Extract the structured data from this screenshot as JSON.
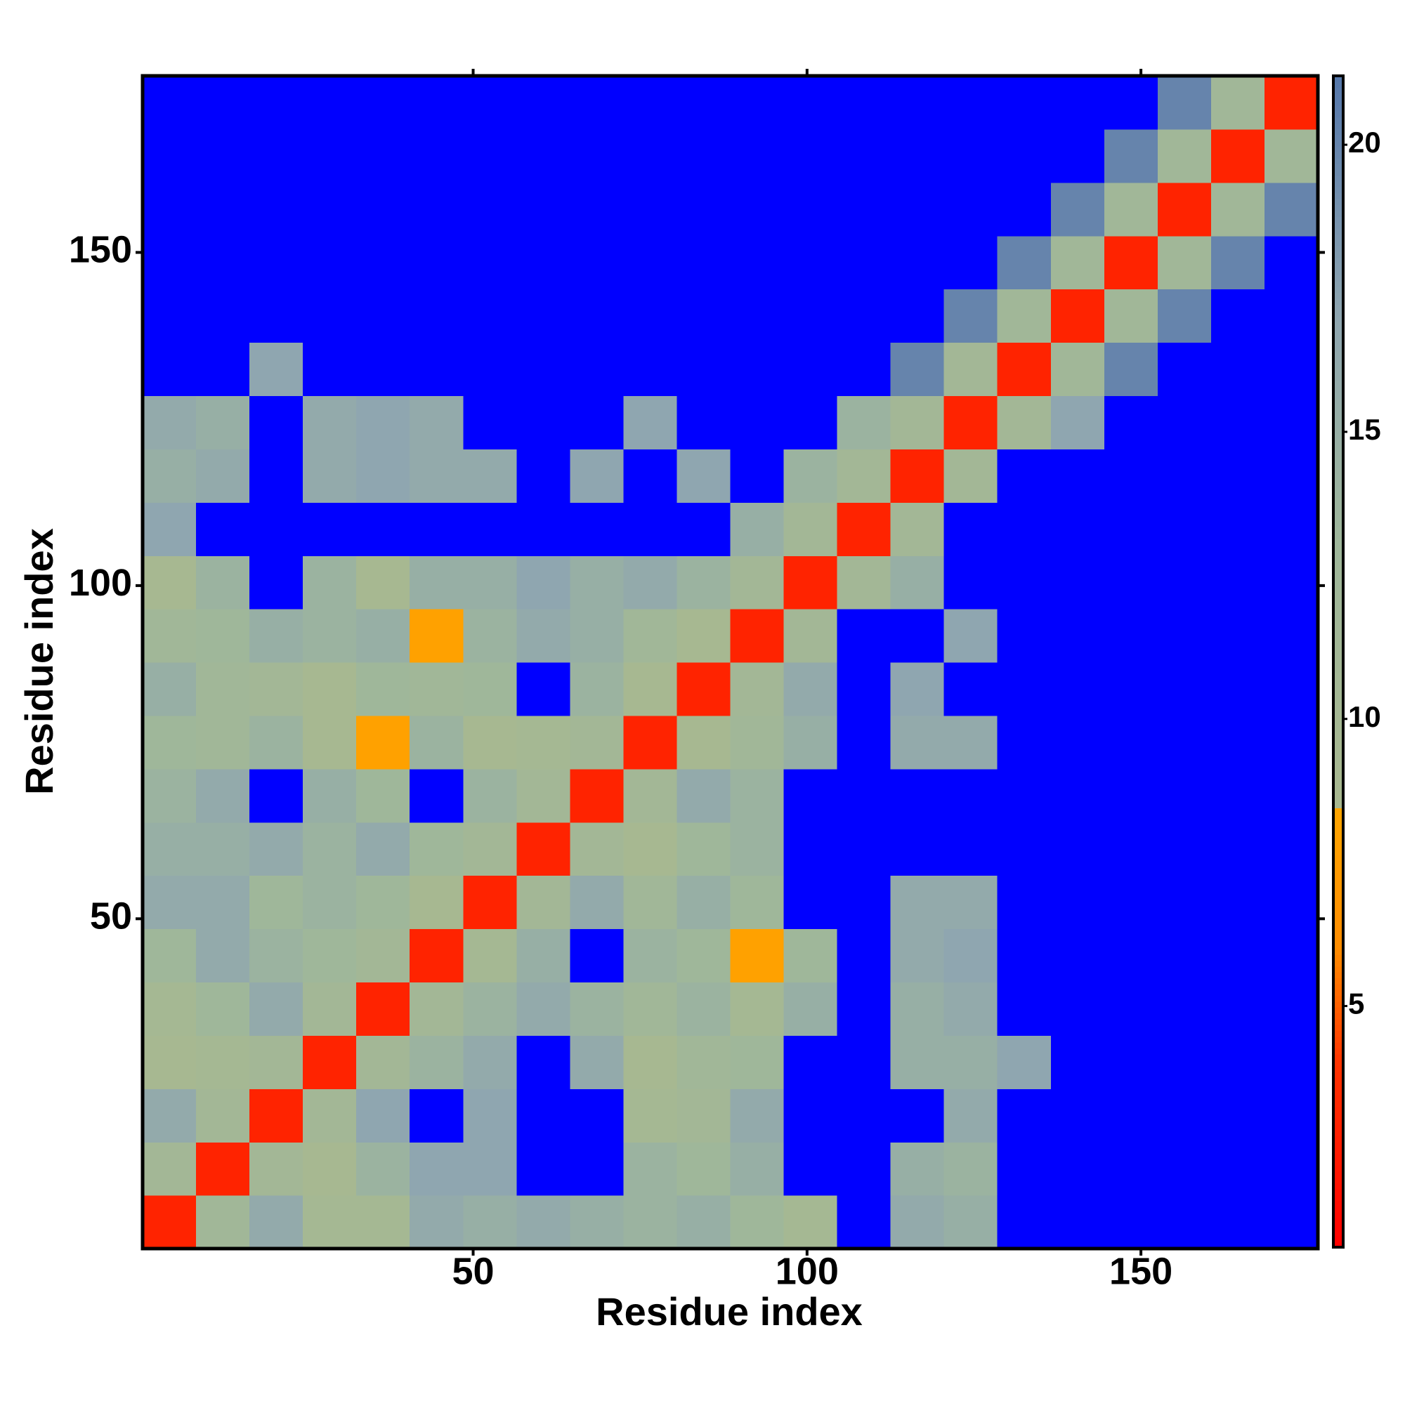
{
  "chart_data": {
    "type": "heatmap",
    "x_label": "Residue index",
    "y_label": "Residue index",
    "xlim": [
      0.5,
      176.5
    ],
    "ylim": [
      0.5,
      176.5
    ],
    "xticks": [
      50,
      100,
      150
    ],
    "yticks": [
      50,
      100,
      150
    ],
    "x": [
      4.5,
      12.5,
      20.5,
      28.5,
      36.5,
      44.5,
      52.5,
      60.5,
      68.5,
      76.5,
      84.5,
      92.5,
      100.5,
      108.5,
      116.5,
      124.5,
      132.5,
      140.5,
      148.5,
      156.5,
      164.5,
      172.5
    ],
    "y": [
      4.5,
      12.5,
      20.5,
      28.5,
      36.5,
      44.5,
      52.5,
      60.5,
      68.5,
      76.5,
      84.5,
      92.5,
      100.5,
      108.5,
      116.5,
      124.5,
      132.5,
      140.5,
      148.5,
      156.5,
      164.5,
      172.5
    ],
    "z": [
      [
        3,
        12,
        16,
        10,
        10,
        16,
        15,
        16,
        15,
        14,
        15,
        13,
        10,
        25,
        16,
        15,
        25,
        25,
        25,
        25,
        25,
        25
      ],
      [
        11,
        3,
        11,
        9,
        14,
        17,
        17,
        25,
        25,
        14,
        13,
        15,
        25,
        25,
        15,
        14,
        25,
        25,
        25,
        25,
        25,
        25
      ],
      [
        16,
        11,
        3,
        11,
        17,
        25,
        17,
        25,
        25,
        10,
        11,
        16,
        25,
        25,
        25,
        16,
        25,
        25,
        25,
        25,
        25,
        25
      ],
      [
        9,
        10,
        11,
        3,
        11,
        14,
        16,
        25,
        16,
        9,
        12,
        13,
        25,
        25,
        15,
        15,
        17,
        25,
        25,
        25,
        25,
        25
      ],
      [
        10,
        13,
        16,
        11,
        3,
        11,
        14,
        16,
        14,
        12,
        14,
        10,
        15,
        25,
        15,
        16,
        25,
        25,
        25,
        25,
        25,
        25
      ],
      [
        13,
        16,
        14,
        13,
        11,
        3,
        10,
        15,
        25,
        14,
        13,
        8,
        13,
        25,
        16,
        17,
        25,
        25,
        25,
        25,
        25,
        25
      ],
      [
        16,
        16,
        13,
        14,
        13,
        9,
        3,
        11,
        16,
        12,
        15,
        13,
        25,
        25,
        16,
        16,
        25,
        25,
        25,
        25,
        25,
        25
      ],
      [
        15,
        15,
        16,
        14,
        16,
        13,
        11,
        3,
        11,
        9,
        13,
        14,
        25,
        25,
        25,
        25,
        25,
        25,
        25,
        25,
        25,
        25
      ],
      [
        14,
        16,
        25,
        15,
        13,
        25,
        14,
        11,
        3,
        11,
        16,
        14,
        25,
        25,
        25,
        25,
        25,
        25,
        25,
        25,
        25,
        25
      ],
      [
        13,
        12,
        14,
        9,
        8,
        14,
        9,
        10,
        11,
        3,
        9,
        12,
        15,
        25,
        16,
        16,
        25,
        25,
        25,
        25,
        25,
        25
      ],
      [
        15,
        12,
        11,
        9,
        13,
        12,
        13,
        25,
        14,
        9,
        3,
        11,
        16,
        25,
        17,
        25,
        25,
        25,
        25,
        25,
        25,
        25
      ],
      [
        12,
        13,
        15,
        14,
        15,
        8,
        14,
        16,
        15,
        12,
        9,
        3,
        11,
        25,
        25,
        17,
        25,
        25,
        25,
        25,
        25,
        25
      ],
      [
        9,
        14,
        25,
        14,
        9,
        15,
        15,
        17,
        15,
        16,
        14,
        11,
        3,
        11,
        15,
        25,
        25,
        25,
        25,
        25,
        25,
        25
      ],
      [
        17,
        25,
        25,
        25,
        25,
        25,
        25,
        25,
        25,
        25,
        25,
        15,
        11,
        3,
        11,
        25,
        25,
        25,
        25,
        25,
        25,
        25
      ],
      [
        15,
        16,
        25,
        16,
        17,
        16,
        16,
        25,
        17,
        25,
        17,
        25,
        14,
        11,
        3,
        11,
        25,
        25,
        25,
        25,
        25,
        25
      ],
      [
        16,
        15,
        25,
        16,
        17,
        16,
        25,
        25,
        25,
        17,
        25,
        25,
        25,
        14,
        11,
        3,
        11,
        17,
        25,
        25,
        25,
        25
      ],
      [
        25,
        25,
        17,
        25,
        25,
        25,
        25,
        25,
        25,
        25,
        25,
        25,
        25,
        25,
        20,
        11,
        3,
        12,
        20,
        25,
        25,
        25
      ],
      [
        25,
        25,
        25,
        25,
        25,
        25,
        25,
        25,
        25,
        25,
        25,
        25,
        25,
        25,
        25,
        20,
        12,
        3,
        12,
        20,
        25,
        25
      ],
      [
        25,
        25,
        25,
        25,
        25,
        25,
        25,
        25,
        25,
        25,
        25,
        25,
        25,
        25,
        25,
        25,
        20,
        12,
        3,
        12,
        20,
        25
      ],
      [
        25,
        25,
        25,
        25,
        25,
        25,
        25,
        25,
        25,
        25,
        25,
        25,
        25,
        25,
        25,
        25,
        25,
        20,
        12,
        3,
        12,
        20
      ],
      [
        25,
        25,
        25,
        25,
        25,
        25,
        25,
        25,
        25,
        25,
        25,
        25,
        25,
        25,
        25,
        25,
        25,
        25,
        20,
        12,
        3,
        12
      ],
      [
        25,
        25,
        25,
        25,
        25,
        25,
        25,
        25,
        25,
        25,
        25,
        25,
        25,
        25,
        25,
        25,
        25,
        25,
        25,
        20,
        12,
        3
      ]
    ],
    "colorbar": {
      "zlim": [
        0.8,
        21.2
      ],
      "ticks": [
        5,
        10,
        15,
        20
      ],
      "stops": [
        [
          0.8,
          "#ff0000"
        ],
        [
          4,
          "#ff3300"
        ],
        [
          6,
          "#ff8c00"
        ],
        [
          8.4,
          "#ffa500"
        ],
        [
          8.5,
          "#a8b890"
        ],
        [
          13,
          "#9fb79a"
        ],
        [
          17,
          "#8fa6b0"
        ],
        [
          21.2,
          "#5577aa"
        ]
      ],
      "over_color": "#0000ff"
    }
  }
}
